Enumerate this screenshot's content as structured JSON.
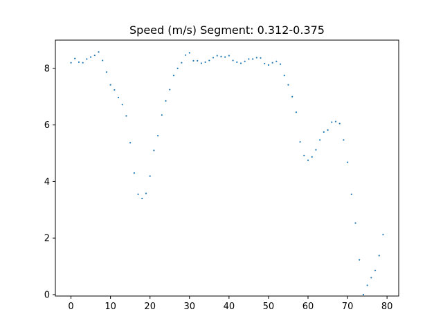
{
  "chart_data": {
    "type": "scatter",
    "title": "Speed (m/s) Segment: 0.312-0.375",
    "xlabel": "",
    "ylabel": "",
    "xlim": [
      -3.95,
      82.95
    ],
    "ylim": [
      -0.05,
      9.0
    ],
    "xticks": [
      0,
      10,
      20,
      30,
      40,
      50,
      60,
      70,
      80
    ],
    "yticks": [
      0,
      2,
      4,
      6,
      8
    ],
    "grid": false,
    "point_color": "#1f77b4",
    "series": [
      {
        "x": [
          0,
          1,
          2,
          3,
          4,
          5,
          6,
          7,
          8,
          9,
          10,
          11,
          12,
          13,
          14,
          15,
          16,
          17,
          18,
          19,
          20,
          21,
          22,
          23,
          24,
          25,
          26,
          27,
          28,
          29,
          30,
          31,
          32,
          33,
          34,
          35,
          36,
          37,
          38,
          39,
          40,
          41,
          42,
          43,
          44,
          45,
          46,
          47,
          48,
          49,
          50,
          51,
          52,
          53,
          54,
          55,
          56,
          57,
          58,
          59,
          60,
          61,
          62,
          63,
          64,
          65,
          66,
          67,
          68,
          69,
          70,
          71,
          72,
          73,
          74,
          75,
          76,
          77,
          78,
          79
        ],
        "y": [
          8.2,
          8.35,
          8.22,
          8.2,
          8.33,
          8.4,
          8.46,
          8.58,
          8.28,
          7.87,
          7.42,
          7.24,
          6.97,
          6.72,
          6.32,
          5.37,
          4.3,
          3.55,
          3.4,
          3.58,
          4.19,
          5.1,
          5.62,
          6.35,
          6.85,
          7.25,
          7.75,
          8.0,
          8.2,
          8.47,
          8.55,
          8.27,
          8.27,
          8.18,
          8.22,
          8.28,
          8.38,
          8.45,
          8.42,
          8.4,
          8.45,
          8.28,
          8.22,
          8.18,
          8.25,
          8.33,
          8.33,
          8.38,
          8.37,
          8.17,
          8.12,
          8.2,
          8.25,
          8.15,
          7.75,
          7.42,
          7.0,
          6.45,
          5.4,
          4.92,
          4.75,
          4.87,
          5.12,
          5.47,
          5.75,
          5.82,
          6.1,
          6.12,
          6.05,
          5.47,
          4.68,
          3.55,
          2.53,
          1.23,
          0.0,
          0.33,
          0.6,
          0.85,
          1.38,
          2.12
        ]
      }
    ]
  }
}
